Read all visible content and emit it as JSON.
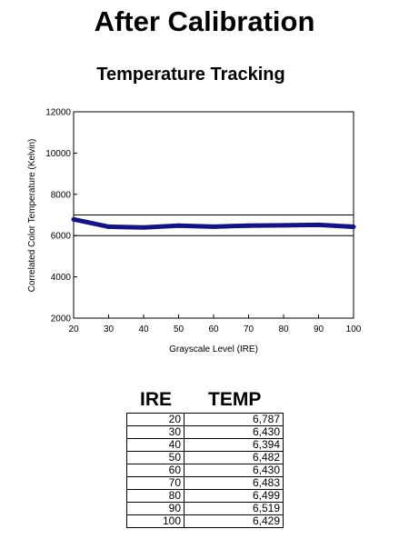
{
  "page_title": "After Calibration",
  "chart_data": {
    "type": "line",
    "title": "Temperature Tracking",
    "xlabel": "Grayscale Level (IRE)",
    "ylabel": "Correlated Color Temperature (Kelvin)",
    "x": [
      20,
      30,
      40,
      50,
      60,
      70,
      80,
      90,
      100
    ],
    "series": [
      {
        "values": [
          6787,
          6430,
          6394,
          6482,
          6430,
          6483,
          6499,
          6519,
          6429
        ],
        "color": "#14147e"
      }
    ],
    "reference_lines": [
      7000,
      6000
    ],
    "xlim": [
      20,
      100
    ],
    "ylim": [
      2000,
      12000
    ],
    "xticks": [
      20,
      30,
      40,
      50,
      60,
      70,
      80,
      90,
      100
    ],
    "yticks": [
      2000,
      4000,
      6000,
      8000,
      10000,
      12000
    ],
    "grid": false,
    "legend": "none"
  },
  "table": {
    "headers": [
      "IRE",
      "TEMP"
    ],
    "rows": [
      [
        "20",
        "6,787"
      ],
      [
        "30",
        "6,430"
      ],
      [
        "40",
        "6,394"
      ],
      [
        "50",
        "6,482"
      ],
      [
        "60",
        "6,430"
      ],
      [
        "70",
        "6,483"
      ],
      [
        "80",
        "6,499"
      ],
      [
        "90",
        "6,519"
      ],
      [
        "100",
        "6,429"
      ]
    ]
  }
}
